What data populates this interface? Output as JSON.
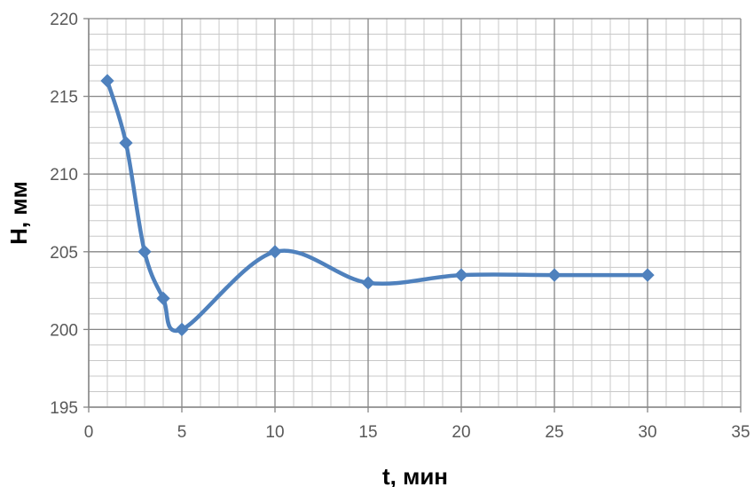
{
  "chart_data": {
    "type": "line",
    "title": "",
    "xlabel": "t, мин",
    "ylabel": "H, мм",
    "xlim": [
      0,
      35
    ],
    "ylim": [
      195,
      220
    ],
    "x_ticks": [
      0,
      5,
      10,
      15,
      20,
      25,
      30,
      35
    ],
    "y_ticks": [
      195,
      200,
      205,
      210,
      215,
      220
    ],
    "x_minor_step": 1,
    "y_minor_step": 1,
    "grid": true,
    "smooth": true,
    "series": [
      {
        "x": [
          1,
          2,
          3,
          4,
          5,
          10,
          15,
          20,
          25,
          30
        ],
        "values": [
          216,
          212,
          205,
          202,
          200,
          205,
          203,
          203.5,
          203.5,
          203.5
        ],
        "color": "#4F81BD",
        "marker": "diamond"
      }
    ]
  },
  "colors": {
    "major_grid": "#868686",
    "minor_grid": "#c8c8c8",
    "axis": "#868686",
    "series": "#4F81BD"
  }
}
